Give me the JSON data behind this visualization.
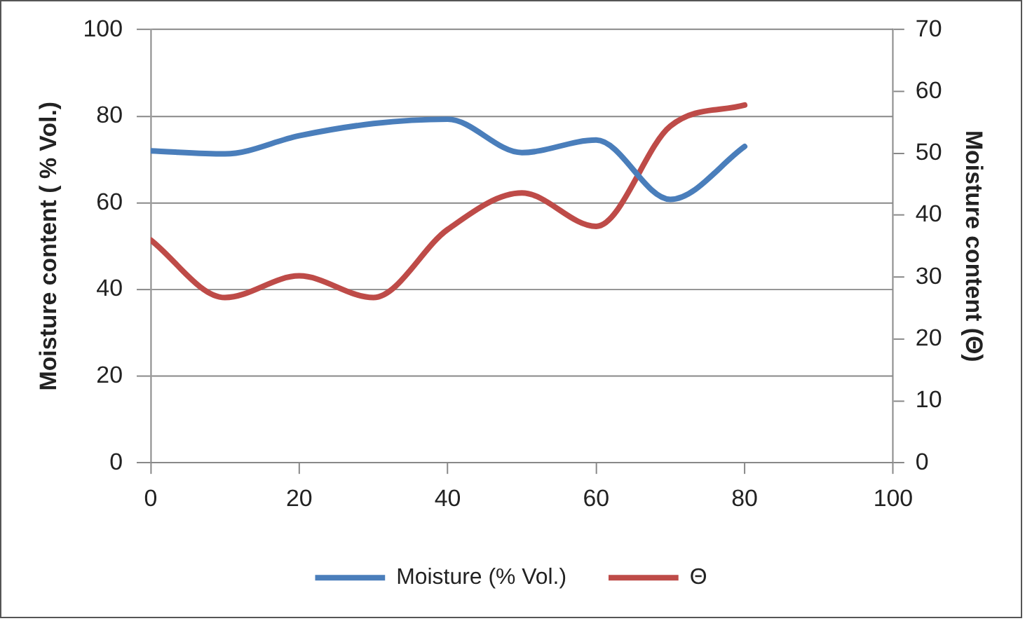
{
  "chart_data": {
    "type": "line",
    "ylabel": "Moisture content ( % Vol.)",
    "y2label": "Moisture content (Θ)",
    "x": [
      0,
      10,
      20,
      30,
      40,
      50,
      60,
      70,
      80
    ],
    "series": [
      {
        "name": "Moisture (% Vol.)",
        "color": "#4a7ebb",
        "values": [
          72,
          71.3,
          75.5,
          78.3,
          79.3,
          71.6,
          74.5,
          60.8,
          73
        ]
      },
      {
        "name": "Θ",
        "color": "#be4b48",
        "axis": "y2",
        "values": [
          36,
          26.7,
          30.2,
          26.7,
          37.7,
          43.6,
          38.2,
          54.4,
          57.8
        ]
      }
    ],
    "xlim": [
      0,
      100
    ],
    "xticks": [
      0,
      20,
      40,
      60,
      80,
      100
    ],
    "ylim": [
      0,
      100
    ],
    "yticks": [
      0,
      20,
      40,
      60,
      80,
      100
    ],
    "y2lim": [
      0,
      70
    ],
    "y2ticks": [
      0,
      10,
      20,
      30,
      40,
      50,
      60,
      70
    ],
    "grid": "y",
    "legend": "bottom",
    "marker": "none",
    "line_style": "solid"
  }
}
